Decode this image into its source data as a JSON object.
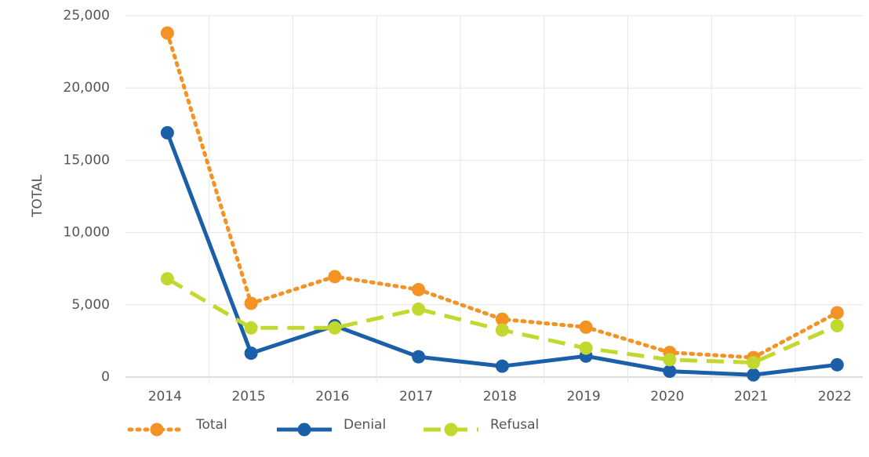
{
  "chart_data": {
    "type": "line",
    "y_label": "TOTAL",
    "categories": [
      "2014",
      "2015",
      "2016",
      "2017",
      "2018",
      "2019",
      "2020",
      "2021",
      "2022"
    ],
    "series": [
      {
        "name": "Total",
        "color": "#f39325",
        "dash": "dotted",
        "values": [
          23800,
          5100,
          6950,
          6050,
          4000,
          3450,
          1700,
          1350,
          4450
        ]
      },
      {
        "name": "Denial",
        "color": "#1b5fa9",
        "dash": "solid",
        "values": [
          16900,
          1650,
          3550,
          1400,
          750,
          1450,
          400,
          150,
          850
        ]
      },
      {
        "name": "Refusal",
        "color": "#c3d82f",
        "dash": "dashed",
        "values": [
          6800,
          3400,
          3400,
          4700,
          3250,
          2000,
          1200,
          1000,
          3550
        ]
      }
    ],
    "ylim": [
      0,
      25000
    ],
    "yticks": [
      0,
      {
        "value": 5000,
        "label": "5,000"
      },
      {
        "value": 10000,
        "label": "10,000"
      },
      {
        "value": 15000,
        "label": "15,000"
      },
      {
        "value": 20000,
        "label": "20,000"
      },
      {
        "value": 25000,
        "label": "25,000"
      }
    ],
    "grid": true,
    "legend": "bottom"
  }
}
